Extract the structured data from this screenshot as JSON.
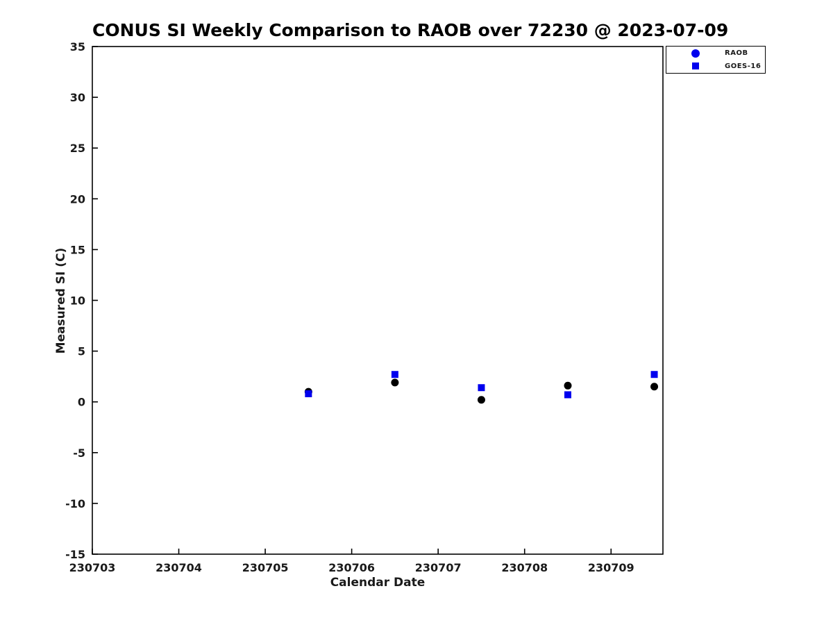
{
  "chart_data": {
    "type": "scatter",
    "title": "CONUS SI Weekly Comparison to RAOB over 72230 @ 2023-07-09",
    "xlabel": "Calendar Date",
    "ylabel": "Measured SI (C)",
    "xlim": [
      230703,
      230709.6
    ],
    "ylim": [
      -15,
      35
    ],
    "x_ticks": [
      230703,
      230704,
      230705,
      230706,
      230707,
      230708,
      230709
    ],
    "y_ticks": [
      -15,
      -10,
      -5,
      0,
      5,
      10,
      15,
      20,
      25,
      30,
      35
    ],
    "grid": false,
    "axis_color": "#000000",
    "text_color": "#1a1a1a",
    "accent_blue": "#0000ee",
    "legend": {
      "position": "outside-top-right",
      "entries": [
        {
          "label": "RAOB",
          "marker": "circle",
          "color": "#0000ee",
          "icon": "circle-marker-icon"
        },
        {
          "label": "GOES-16",
          "marker": "square",
          "color": "#0000ee",
          "icon": "square-marker-icon"
        }
      ]
    },
    "series": [
      {
        "name": "RAOB",
        "marker": "circle",
        "color": "#000000",
        "x": [
          230705.5,
          230706.5,
          230707.5,
          230708.5,
          230709.5
        ],
        "y": [
          1.0,
          1.9,
          0.2,
          1.6,
          1.5
        ]
      },
      {
        "name": "GOES-16",
        "marker": "square",
        "color": "#0000ee",
        "x": [
          230705.5,
          230706.5,
          230707.5,
          230708.5,
          230709.5
        ],
        "y": [
          0.8,
          2.7,
          1.4,
          0.7,
          2.7
        ]
      }
    ]
  }
}
